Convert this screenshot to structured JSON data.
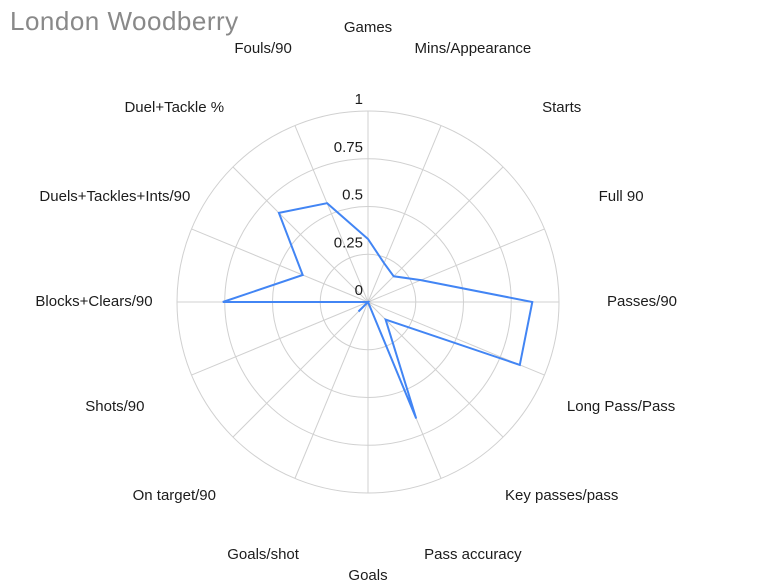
{
  "title": "London Woodberry",
  "chart_data": {
    "type": "radar",
    "title": "London Woodberry",
    "categories": [
      "Games",
      "Mins/Appearance",
      "Starts",
      "Full 90",
      "Passes/90",
      "Long Pass/Pass",
      "Key passes/pass",
      "Pass accuracy",
      "Goals",
      "Goals/shot",
      "On target/90",
      "Shots/90",
      "Blocks+Clears/90",
      "Duels+Tackles+Ints/90",
      "Duel+Tackle %",
      "Fouls/90"
    ],
    "series": [
      {
        "name": "London Woodberry",
        "values": [
          0.33,
          0.22,
          0.19,
          0.3,
          0.86,
          0.86,
          0.13,
          0.66,
          0,
          0,
          0.07,
          0,
          0.76,
          0.37,
          0.66,
          0.56
        ]
      }
    ],
    "radial_ticks": [
      "0",
      "0.25",
      "0.5",
      "0.75",
      "1"
    ],
    "radial_tick_values": [
      0,
      0.25,
      0.5,
      0.75,
      1
    ],
    "radial_range": [
      0,
      1
    ],
    "direction": "clockwise",
    "start_axis": "top",
    "grid": true,
    "legend_position": "none",
    "colors": {
      "line": "#4285f4",
      "grid": "#d0d0d0",
      "title": "#898989",
      "labels": "#1c1c1c"
    }
  }
}
